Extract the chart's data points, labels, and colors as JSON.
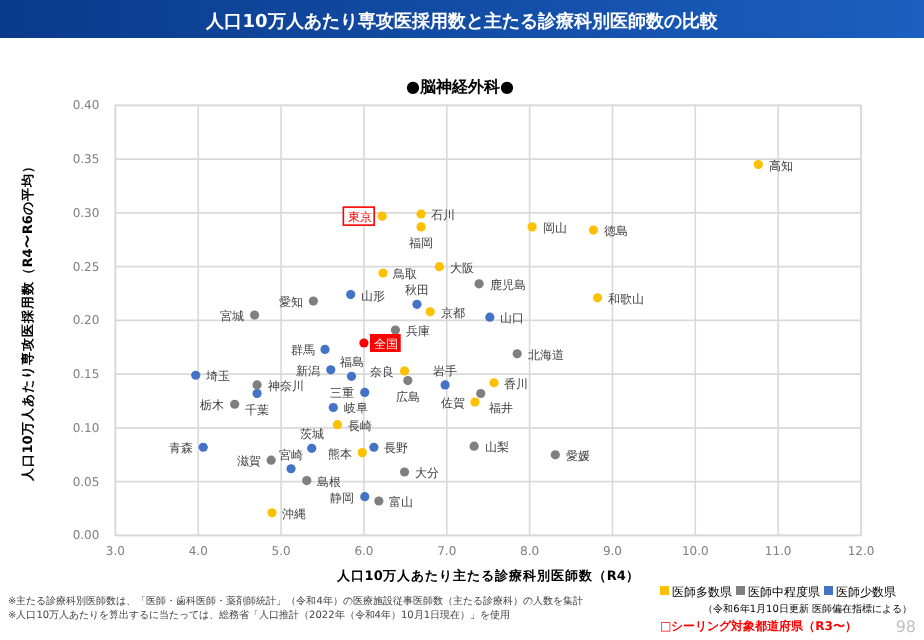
{
  "chart_data": {
    "type": "scatter",
    "title": "人口10万人あたり専攻医採用数と主たる診療科別医師数の比較",
    "subtitle": "●脳神経外科●",
    "xlabel": "人口10万人あたり主たる診療科別医師数（R4）",
    "ylabel": "人口10万人あたり専攻医採用数（R4〜R6の平均）",
    "xlim": [
      3,
      12
    ],
    "xticks": [
      {
        "value": 3,
        "label": "3.0"
      },
      {
        "value": 4,
        "label": "4.0"
      },
      {
        "value": 5,
        "label": "5.0"
      },
      {
        "value": 6,
        "label": "6.0"
      },
      {
        "value": 7,
        "label": "7.0"
      },
      {
        "value": 8,
        "label": "8.0"
      },
      {
        "value": 9,
        "label": "9.0"
      },
      {
        "value": 10,
        "label": "10.0"
      },
      {
        "value": 11,
        "label": "11.0"
      },
      {
        "value": 12,
        "label": "12.0"
      }
    ],
    "ylim": [
      0,
      0.4
    ],
    "yticks": [
      {
        "value": 0,
        "label": "0.00"
      },
      {
        "value": 0.05,
        "label": "0.05"
      },
      {
        "value": 0.1,
        "label": "0.10"
      },
      {
        "value": 0.15,
        "label": "0.15"
      },
      {
        "value": 0.2,
        "label": "0.20"
      },
      {
        "value": 0.25,
        "label": "0.25"
      },
      {
        "value": 0.3,
        "label": "0.30"
      },
      {
        "value": 0.35,
        "label": "0.35"
      },
      {
        "value": 0.4,
        "label": "0.40"
      }
    ],
    "grid": true,
    "marker": "circle",
    "legend": "bottom right",
    "series": [
      {
        "name": "医師多数県",
        "color": "#ffc000",
        "x": [
          6.22,
          6.69,
          6.69,
          6.23,
          6.91,
          6.8,
          10.76,
          8.03,
          8.77,
          8.82,
          6.49,
          5.68,
          5.98,
          4.89,
          7.57,
          7.34
        ],
        "values": [
          0.297,
          0.299,
          0.287,
          0.244,
          0.25,
          0.208,
          0.345,
          0.287,
          0.284,
          0.221,
          0.153,
          0.103,
          0.077,
          0.021,
          0.142,
          0.124
        ]
      },
      {
        "name": "医師中程度県",
        "color": "#7f7f7f",
        "x": [
          7.39,
          5.39,
          4.68,
          6.38,
          7.85,
          4.71,
          4.44,
          6.53,
          4.88,
          5.31,
          6.49,
          6.18,
          7.33,
          8.31,
          7.41
        ],
        "values": [
          0.234,
          0.218,
          0.205,
          0.191,
          0.169,
          0.14,
          0.122,
          0.144,
          0.07,
          0.051,
          0.059,
          0.032,
          0.083,
          0.075,
          0.132
        ]
      },
      {
        "name": "医師少数県",
        "color": "#4472c4",
        "x": [
          5.84,
          6.64,
          7.52,
          5.53,
          3.97,
          4.71,
          5.6,
          5.85,
          5.63,
          6.01,
          6.98,
          4.06,
          5.37,
          6.12,
          5.12,
          6.01
        ],
        "values": [
          0.224,
          0.215,
          0.203,
          0.173,
          0.149,
          0.132,
          0.154,
          0.148,
          0.119,
          0.133,
          0.14,
          0.082,
          0.081,
          0.082,
          0.062,
          0.036
        ]
      },
      {
        "color": "#ff0000",
        "x": [
          6.0
        ],
        "values": [
          0.179
        ]
      }
    ],
    "annotations": [
      {
        "text": "東京",
        "x": 6.22,
        "y": 0.297
      },
      {
        "text": "石川",
        "x": 6.69,
        "y": 0.299
      },
      {
        "text": "福岡",
        "x": 6.69,
        "y": 0.287
      },
      {
        "text": "鳥取",
        "x": 6.23,
        "y": 0.244
      },
      {
        "text": "大阪",
        "x": 6.91,
        "y": 0.25
      },
      {
        "text": "京都",
        "x": 6.8,
        "y": 0.208
      },
      {
        "text": "高知",
        "x": 10.76,
        "y": 0.345
      },
      {
        "text": "岡山",
        "x": 8.03,
        "y": 0.287
      },
      {
        "text": "徳島",
        "x": 8.77,
        "y": 0.284
      },
      {
        "text": "和歌山",
        "x": 8.82,
        "y": 0.221
      },
      {
        "text": "奈良",
        "x": 6.49,
        "y": 0.153
      },
      {
        "text": "長崎",
        "x": 5.68,
        "y": 0.103
      },
      {
        "text": "熊本",
        "x": 5.98,
        "y": 0.077
      },
      {
        "text": "沖縄",
        "x": 4.89,
        "y": 0.021
      },
      {
        "text": "香川",
        "x": 7.57,
        "y": 0.142
      },
      {
        "text": "佐賀",
        "x": 7.34,
        "y": 0.124
      },
      {
        "text": "鹿児島",
        "x": 7.39,
        "y": 0.234
      },
      {
        "text": "愛知",
        "x": 5.39,
        "y": 0.218
      },
      {
        "text": "宮城",
        "x": 4.68,
        "y": 0.205
      },
      {
        "text": "兵庫",
        "x": 6.38,
        "y": 0.191
      },
      {
        "text": "北海道",
        "x": 7.85,
        "y": 0.169
      },
      {
        "text": "神奈川",
        "x": 4.71,
        "y": 0.14
      },
      {
        "text": "栃木",
        "x": 4.44,
        "y": 0.122
      },
      {
        "text": "広島",
        "x": 6.53,
        "y": 0.144
      },
      {
        "text": "滋賀",
        "x": 4.88,
        "y": 0.07
      },
      {
        "text": "島根",
        "x": 5.31,
        "y": 0.051
      },
      {
        "text": "大分",
        "x": 6.49,
        "y": 0.059
      },
      {
        "text": "富山",
        "x": 6.18,
        "y": 0.032
      },
      {
        "text": "山梨",
        "x": 7.33,
        "y": 0.083
      },
      {
        "text": "愛媛",
        "x": 8.31,
        "y": 0.075
      },
      {
        "text": "福井",
        "x": 7.41,
        "y": 0.132
      },
      {
        "text": "山形",
        "x": 5.84,
        "y": 0.224
      },
      {
        "text": "秋田",
        "x": 6.64,
        "y": 0.215
      },
      {
        "text": "山口",
        "x": 7.52,
        "y": 0.203
      },
      {
        "text": "群馬",
        "x": 5.53,
        "y": 0.173
      },
      {
        "text": "埼玉",
        "x": 3.97,
        "y": 0.149
      },
      {
        "text": "千葉",
        "x": 4.71,
        "y": 0.132
      },
      {
        "text": "新潟",
        "x": 5.6,
        "y": 0.154
      },
      {
        "text": "福島",
        "x": 5.85,
        "y": 0.148
      },
      {
        "text": "岐阜",
        "x": 5.63,
        "y": 0.119
      },
      {
        "text": "三重",
        "x": 6.01,
        "y": 0.133
      },
      {
        "text": "岩手",
        "x": 6.98,
        "y": 0.14
      },
      {
        "text": "青森",
        "x": 4.06,
        "y": 0.082
      },
      {
        "text": "茨城",
        "x": 5.37,
        "y": 0.081
      },
      {
        "text": "長野",
        "x": 6.12,
        "y": 0.082
      },
      {
        "text": "宮崎",
        "x": 5.12,
        "y": 0.062
      },
      {
        "text": "静岡",
        "x": 6.01,
        "y": 0.036
      },
      {
        "text": "全国",
        "x": 6.0,
        "y": 0.179
      },
      "（令和6年1月10日更新 医師偏在指標による）",
      "□シーリング対象都道府県（R3〜）",
      "※主たる診療科別医師数は、「医師・歯科医師・薬剤師統計」（令和4年）の医療施設従事医師数（主たる診療科）の人数を集計",
      "※人口10万人あたりを算出するに当たっては、総務省「人口推計（2022年（令和4年）10月1日現在）」を使用",
      "98"
    ]
  }
}
